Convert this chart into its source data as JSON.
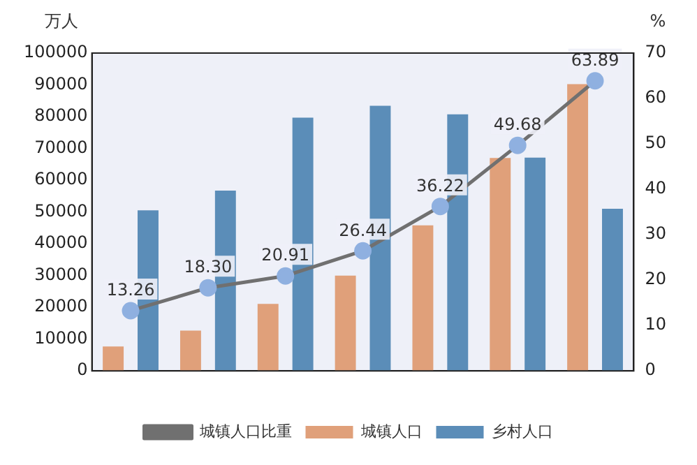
{
  "chart_data": {
    "type": "bar",
    "ylabel": "万人",
    "y2label": "%",
    "categories": [
      null,
      null,
      null,
      null,
      null,
      null,
      null
    ],
    "series": [
      {
        "name": "城镇人口",
        "color": "#e0a07a",
        "values": [
          7700,
          12700,
          21100,
          30000,
          45800,
          67000,
          90200
        ]
      },
      {
        "name": "乡村人口",
        "color": "#5b8db8",
        "values": [
          50500,
          56700,
          79700,
          83400,
          80700,
          67100,
          51000
        ]
      },
      {
        "name": "城镇人口比重",
        "type": "line",
        "axis": "y2",
        "color": "#707070",
        "marker": "circle",
        "values": [
          13.26,
          18.3,
          20.91,
          26.44,
          36.22,
          49.68,
          63.89
        ],
        "value_labels": [
          "13.26",
          "18.30",
          "20.91",
          "26.44",
          "36.22",
          "49.68",
          "63.89"
        ]
      }
    ],
    "ylim": [
      0,
      100000
    ],
    "yticks": [
      0,
      10000,
      20000,
      30000,
      40000,
      50000,
      60000,
      70000,
      80000,
      90000,
      100000
    ],
    "y2lim": [
      0,
      70
    ],
    "y2ticks": [
      0,
      10,
      20,
      30,
      40,
      50,
      60,
      70
    ],
    "grid": false,
    "legend": "bottom"
  }
}
